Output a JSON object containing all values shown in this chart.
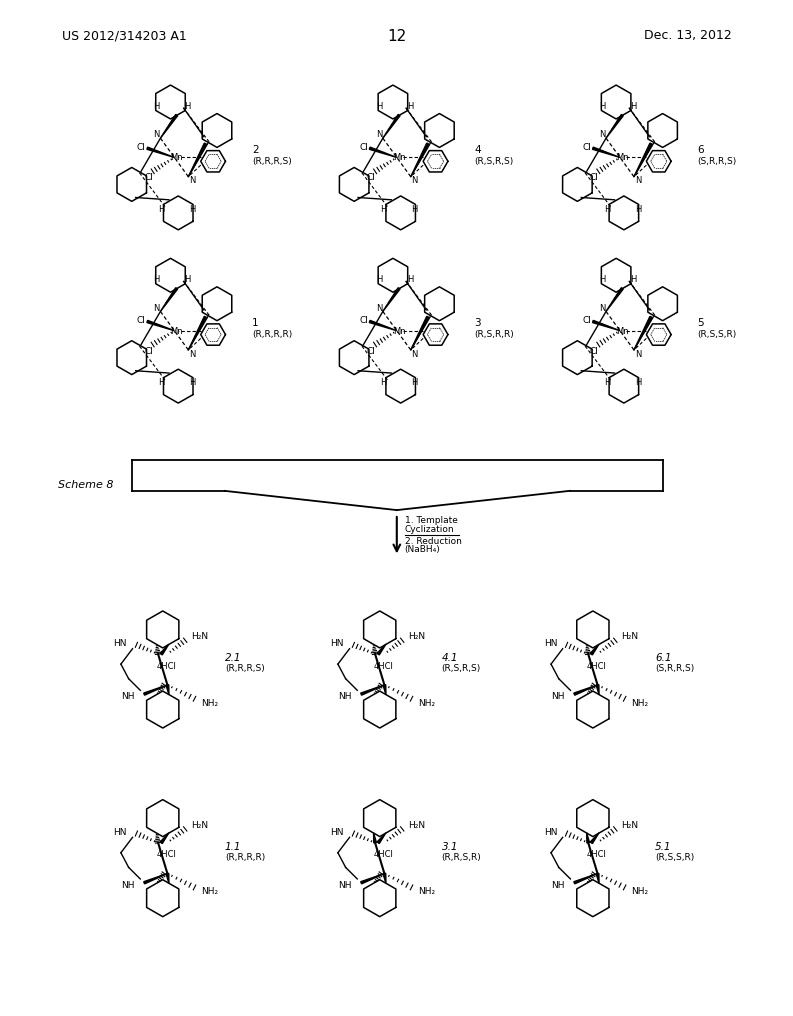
{
  "page_header_left": "US 2012/314203 A1",
  "page_header_right": "Dec. 13, 2012",
  "page_number": "12",
  "scheme_label": "Scheme 8",
  "reaction_line1": "1. Template",
  "reaction_line2": "Cyclization",
  "reaction_line3": "2. Reduction",
  "reaction_line4": "(NaBH₄)",
  "top_row1": [
    {
      "num": "2",
      "stereo": "(R,R,R,S)"
    },
    {
      "num": "4",
      "stereo": "(R,S,R,S)"
    },
    {
      "num": "6",
      "stereo": "(S,R,R,S)"
    }
  ],
  "top_row2": [
    {
      "num": "1",
      "stereo": "(R,R,R,R)"
    },
    {
      "num": "3",
      "stereo": "(R,S,R,R)"
    },
    {
      "num": "5",
      "stereo": "(R,S,S,R)"
    }
  ],
  "prod_row1": [
    {
      "num": "2.1",
      "stereo": "(R,R,R,S)"
    },
    {
      "num": "4.1",
      "stereo": "(R,S,R,S)"
    },
    {
      "num": "6.1",
      "stereo": "(S,R,R,S)"
    }
  ],
  "prod_row2": [
    {
      "num": "1.1",
      "stereo": "(R,R,R,R)"
    },
    {
      "num": "3.1",
      "stereo": "(R,R,S,R)"
    },
    {
      "num": "5.1",
      "stereo": "(R,S,S,R)"
    }
  ],
  "bg": "#ffffff",
  "fg": "#000000"
}
